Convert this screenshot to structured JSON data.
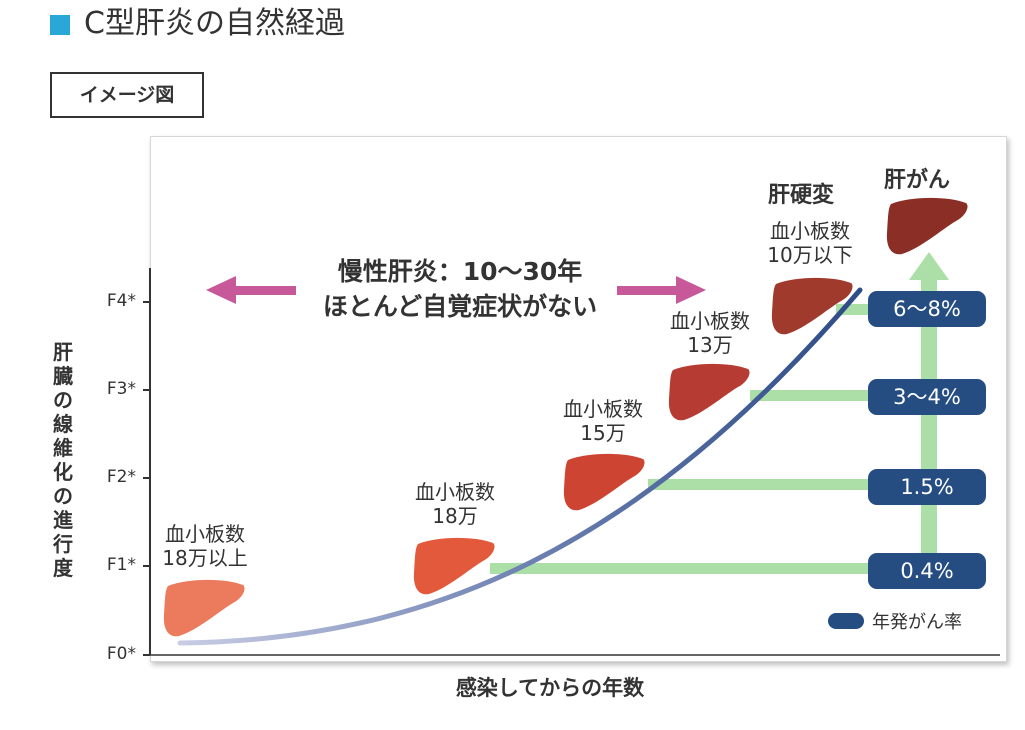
{
  "header": {
    "title": "C型肝炎の自然経過",
    "badge": "イメージ図"
  },
  "axes": {
    "y_title": [
      "肝",
      "臓",
      "の",
      "線",
      "維",
      "化",
      "の",
      "進",
      "行",
      "度"
    ],
    "x_title": "感染してからの年数",
    "y_ticks": [
      "F0*",
      "F1*",
      "F2*",
      "F3*",
      "F4*"
    ]
  },
  "chronic": {
    "line1": "慢性肝炎：10〜30年",
    "line2": "ほとんど自覚症状がない"
  },
  "livers": [
    {
      "line1": "血小板数",
      "line2": "18万以上",
      "color": "#ec7a5c"
    },
    {
      "line1": "血小板数",
      "line2": "18万",
      "color": "#e3593b"
    },
    {
      "line1": "血小板数",
      "line2": "15万",
      "color": "#cd4532"
    },
    {
      "line1": "血小板数",
      "line2": "13万",
      "color": "#b63c33"
    },
    {
      "line1": "血小板数",
      "line2": "10万以下",
      "color": "#a03a2c"
    }
  ],
  "stages": {
    "cirrhosis": "肝硬変",
    "cancer": "肝がん",
    "cancer_color": "#8b2e26"
  },
  "rates": [
    "0.4%",
    "1.5%",
    "3〜4%",
    "6〜8%"
  ],
  "legend": {
    "label": "年発がん率",
    "color": "#264d82"
  },
  "colors": {
    "accent": "#29a8d8",
    "arrow": "#c7599b",
    "green": "#abdfa7",
    "curve": "#2d4b86"
  }
}
